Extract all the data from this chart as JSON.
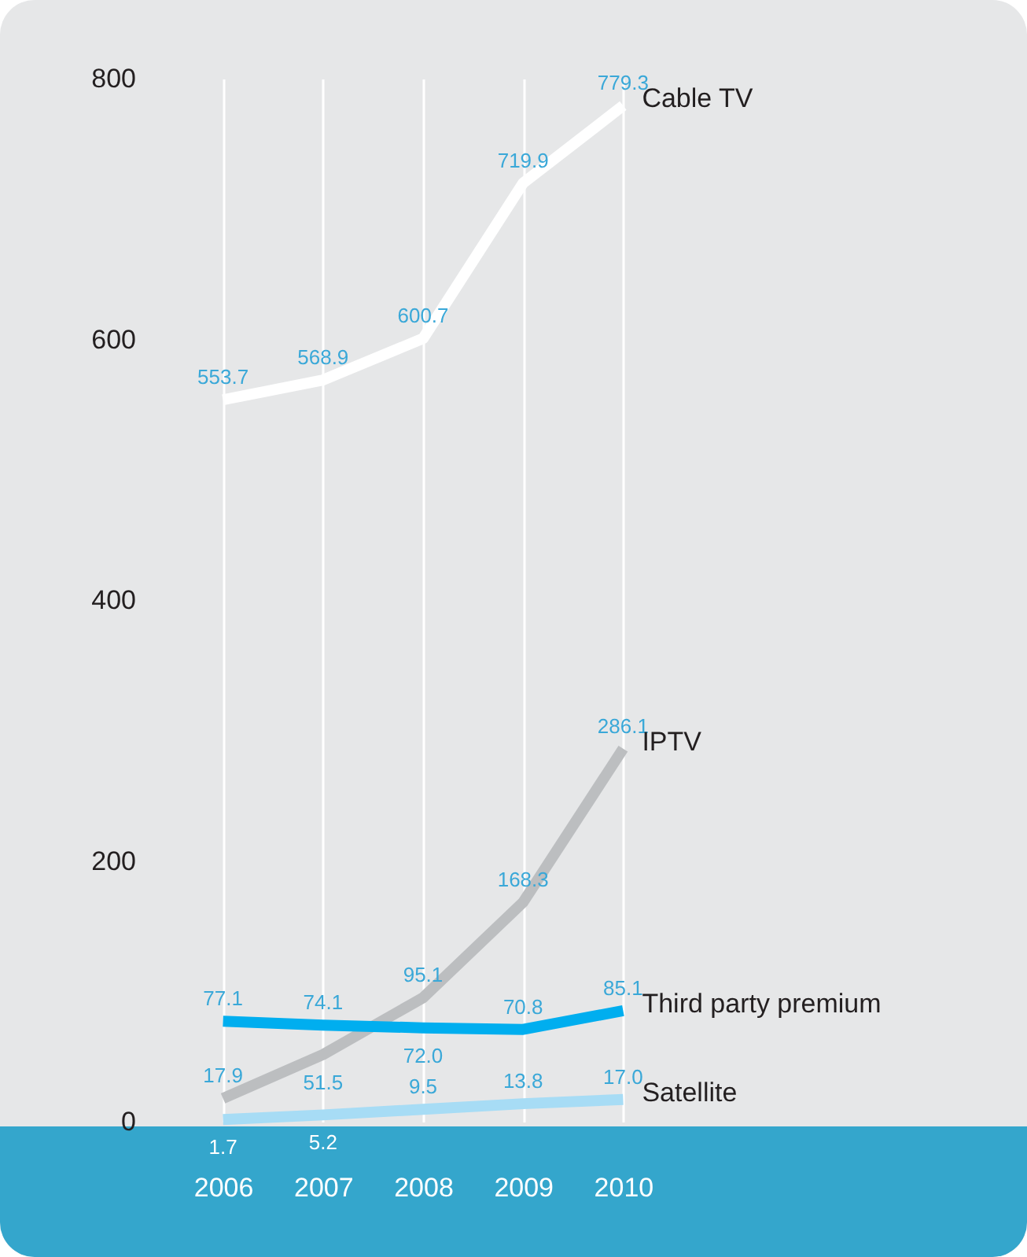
{
  "chart_data": {
    "type": "line",
    "categories": [
      "2006",
      "2007",
      "2008",
      "2009",
      "2010"
    ],
    "series": [
      {
        "name": "Cable TV",
        "color": "#ffffff",
        "values": [
          553.7,
          568.9,
          600.7,
          719.9,
          779.3
        ],
        "value_labels": [
          "553.7",
          "568.9",
          "600.7",
          "719.9",
          "779.3"
        ]
      },
      {
        "name": "IPTV",
        "color": "#bcbec0",
        "values": [
          17.9,
          51.5,
          95.1,
          168.3,
          286.1
        ],
        "value_labels": [
          "17.9",
          "51.5",
          "95.1",
          "168.3",
          "286.1"
        ]
      },
      {
        "name": "Third party premium",
        "color": "#00aeef",
        "values": [
          77.1,
          74.1,
          72.0,
          70.8,
          85.1
        ],
        "value_labels": [
          "77.1",
          "74.1",
          "72.0",
          "70.8",
          "85.1"
        ]
      },
      {
        "name": "Satellite",
        "color": "#a7dcf5",
        "values": [
          1.7,
          5.2,
          9.5,
          13.8,
          17.0
        ],
        "value_labels": [
          "1.7",
          "5.2",
          "9.5",
          "13.8",
          "17.0"
        ]
      }
    ],
    "ylim": [
      0,
      800
    ],
    "yticks": [
      0,
      200,
      400,
      600,
      800
    ],
    "grid": "x",
    "marker": "none",
    "line_style": "solid"
  }
}
